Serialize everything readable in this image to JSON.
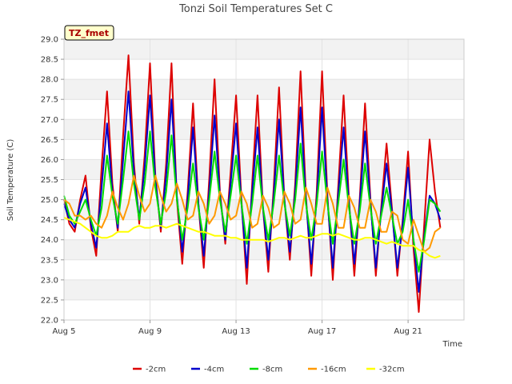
{
  "chart_data": {
    "type": "line",
    "title": "Tonzi Soil Temperatures Set C",
    "xlabel": "Time",
    "ylabel": "Soil Temperature (C)",
    "badge": "TZ_fmet",
    "ylim": [
      22.0,
      29.0
    ],
    "xlim": [
      0,
      18.6
    ],
    "y_ticks": [
      "22.0",
      "22.5",
      "23.0",
      "23.5",
      "24.0",
      "24.5",
      "25.0",
      "25.5",
      "26.0",
      "26.5",
      "27.0",
      "27.5",
      "28.0",
      "28.5",
      "29.0"
    ],
    "x_ticks": [
      {
        "x": 0,
        "label": "Aug 5"
      },
      {
        "x": 4,
        "label": "Aug 9"
      },
      {
        "x": 8,
        "label": "Aug 13"
      },
      {
        "x": 12,
        "label": "Aug 17"
      },
      {
        "x": 16,
        "label": "Aug 21"
      }
    ],
    "grid": true,
    "legend_position": "bottom",
    "x": [
      0.0,
      0.25,
      0.5,
      0.75,
      1.0,
      1.25,
      1.5,
      1.75,
      2.0,
      2.25,
      2.5,
      2.75,
      3.0,
      3.25,
      3.5,
      3.75,
      4.0,
      4.25,
      4.5,
      4.75,
      5.0,
      5.25,
      5.5,
      5.75,
      6.0,
      6.25,
      6.5,
      6.75,
      7.0,
      7.25,
      7.5,
      7.75,
      8.0,
      8.25,
      8.5,
      8.75,
      9.0,
      9.25,
      9.5,
      9.75,
      10.0,
      10.25,
      10.5,
      10.75,
      11.0,
      11.25,
      11.5,
      11.75,
      12.0,
      12.25,
      12.5,
      12.75,
      13.0,
      13.25,
      13.5,
      13.75,
      14.0,
      14.25,
      14.5,
      14.75,
      15.0,
      15.25,
      15.5,
      15.75,
      16.0,
      16.25,
      16.5,
      16.75,
      17.0,
      17.25,
      17.5
    ],
    "series": [
      {
        "name": "-2cm",
        "color": "#dd0000",
        "values": [
          25.0,
          24.4,
          24.2,
          25.0,
          25.6,
          24.3,
          23.6,
          25.8,
          27.7,
          25.4,
          24.2,
          26.6,
          28.6,
          25.9,
          24.4,
          26.1,
          28.4,
          25.6,
          24.2,
          25.9,
          28.4,
          25.0,
          23.4,
          25.2,
          27.4,
          24.9,
          23.3,
          25.5,
          28.0,
          25.2,
          23.9,
          25.7,
          27.6,
          25.0,
          22.9,
          25.4,
          27.6,
          24.8,
          23.2,
          25.3,
          27.8,
          25.0,
          23.5,
          25.4,
          28.2,
          25.1,
          23.1,
          25.2,
          28.2,
          25.1,
          23.0,
          25.3,
          27.6,
          25.0,
          23.1,
          25.0,
          27.4,
          25.0,
          23.1,
          24.8,
          26.4,
          24.8,
          23.1,
          24.5,
          26.2,
          23.8,
          22.2,
          24.4,
          26.5,
          25.2,
          24.3
        ]
      },
      {
        "name": "-4cm",
        "color": "#0000cc",
        "values": [
          24.9,
          24.5,
          24.3,
          24.9,
          25.3,
          24.4,
          23.8,
          25.3,
          26.9,
          25.2,
          24.3,
          26.0,
          27.7,
          25.7,
          24.5,
          25.8,
          27.6,
          25.5,
          24.3,
          25.6,
          27.5,
          25.1,
          23.7,
          25.0,
          26.8,
          24.9,
          23.6,
          25.2,
          27.1,
          25.1,
          24.0,
          25.4,
          26.9,
          24.9,
          23.3,
          25.2,
          26.8,
          24.8,
          23.5,
          25.1,
          27.0,
          25.0,
          23.7,
          25.2,
          27.3,
          25.0,
          23.4,
          25.0,
          27.3,
          25.0,
          23.3,
          25.1,
          26.8,
          24.9,
          23.4,
          24.9,
          26.7,
          24.9,
          23.3,
          24.7,
          25.9,
          24.7,
          23.3,
          24.4,
          25.8,
          24.0,
          22.7,
          24.1,
          25.1,
          24.9,
          24.5
        ]
      },
      {
        "name": "-8cm",
        "color": "#00dd00",
        "values": [
          25.1,
          24.6,
          24.4,
          24.7,
          25.0,
          24.5,
          24.1,
          24.8,
          26.1,
          25.1,
          24.4,
          25.5,
          26.7,
          25.4,
          24.5,
          25.4,
          26.7,
          25.3,
          24.4,
          25.2,
          26.6,
          25.0,
          24.0,
          24.8,
          25.9,
          24.8,
          24.0,
          25.0,
          26.2,
          25.0,
          24.2,
          25.1,
          26.1,
          24.9,
          23.9,
          24.9,
          26.1,
          24.8,
          24.0,
          24.9,
          26.1,
          24.9,
          24.1,
          25.0,
          26.4,
          24.9,
          24.0,
          24.9,
          26.2,
          24.9,
          23.9,
          24.9,
          26.0,
          24.8,
          23.9,
          24.7,
          25.9,
          24.8,
          23.9,
          24.6,
          25.3,
          24.6,
          23.9,
          24.2,
          25.0,
          24.0,
          23.2,
          24.0,
          25.0,
          24.9,
          24.7
        ]
      },
      {
        "name": "-16cm",
        "color": "#ff9900",
        "values": [
          25.0,
          24.9,
          24.6,
          24.6,
          24.5,
          24.6,
          24.4,
          24.3,
          24.6,
          25.2,
          24.8,
          24.5,
          24.9,
          25.6,
          25.1,
          24.7,
          24.9,
          25.6,
          25.1,
          24.7,
          24.9,
          25.4,
          25.0,
          24.5,
          24.6,
          25.2,
          24.9,
          24.4,
          24.6,
          25.2,
          24.9,
          24.5,
          24.6,
          25.2,
          24.9,
          24.3,
          24.4,
          25.1,
          24.8,
          24.3,
          24.4,
          25.2,
          24.9,
          24.4,
          24.5,
          25.3,
          24.9,
          24.4,
          24.4,
          25.3,
          24.9,
          24.3,
          24.3,
          25.1,
          24.8,
          24.3,
          24.3,
          25.0,
          24.7,
          24.2,
          24.2,
          24.7,
          24.6,
          24.0,
          23.9,
          24.5,
          24.1,
          23.7,
          23.8,
          24.2,
          24.3
        ]
      },
      {
        "name": "-32cm",
        "color": "#ffff00",
        "values": [
          24.55,
          24.5,
          24.45,
          24.4,
          24.3,
          24.2,
          24.1,
          24.05,
          24.05,
          24.1,
          24.2,
          24.2,
          24.2,
          24.3,
          24.35,
          24.3,
          24.3,
          24.35,
          24.35,
          24.3,
          24.35,
          24.4,
          24.35,
          24.3,
          24.25,
          24.2,
          24.2,
          24.15,
          24.1,
          24.1,
          24.1,
          24.05,
          24.05,
          24.0,
          24.0,
          24.0,
          24.0,
          24.0,
          23.95,
          24.0,
          24.05,
          24.05,
          24.0,
          24.05,
          24.1,
          24.05,
          24.05,
          24.1,
          24.15,
          24.15,
          24.1,
          24.15,
          24.1,
          24.05,
          24.0,
          24.0,
          24.05,
          24.05,
          24.0,
          23.95,
          23.9,
          23.95,
          23.9,
          23.85,
          23.85,
          23.85,
          23.75,
          23.7,
          23.6,
          23.55,
          23.6
        ]
      }
    ]
  }
}
